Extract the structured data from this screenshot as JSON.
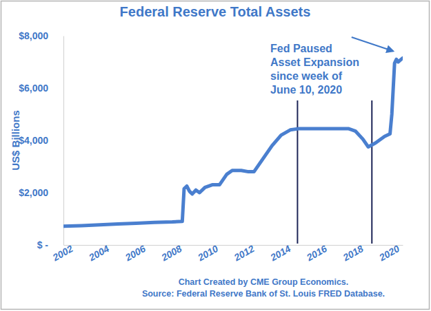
{
  "chart_data": {
    "type": "line",
    "title": "Federal Reserve Total Assets",
    "y_label": "US$ Billions",
    "x": [
      2002,
      2003,
      2004,
      2005,
      2006,
      2007,
      2008,
      2008.55,
      2008.65,
      2008.8,
      2008.95,
      2009.1,
      2009.3,
      2009.5,
      2009.8,
      2010.2,
      2010.6,
      2011.0,
      2011.3,
      2011.8,
      2012.2,
      2012.5,
      2013.0,
      2013.5,
      2014.0,
      2014.5,
      2015.0,
      2016.0,
      2017.0,
      2017.7,
      2018.1,
      2018.5,
      2018.8,
      2019.2,
      2019.7,
      2020.0,
      2020.1,
      2020.25,
      2020.35,
      2020.45,
      2020.7
    ],
    "values": [
      720,
      740,
      770,
      800,
      830,
      860,
      880,
      900,
      2150,
      2250,
      2050,
      1950,
      2100,
      2000,
      2200,
      2300,
      2300,
      2700,
      2850,
      2850,
      2800,
      2800,
      3300,
      3800,
      4200,
      4400,
      4450,
      4450,
      4450,
      4450,
      4350,
      4050,
      3750,
      3900,
      4150,
      4250,
      5000,
      6950,
      7100,
      7000,
      7150
    ],
    "color": "#4a7fcf",
    "xlim": [
      2002,
      2020.7
    ],
    "xticks": [
      2002,
      2004,
      2006,
      2008,
      2010,
      2012,
      2014,
      2016,
      2018,
      2020
    ],
    "ylim": [
      0,
      8000
    ],
    "yticks": [
      {
        "value": 0,
        "label": "$ -"
      },
      {
        "value": 2000,
        "label": "$2,000"
      },
      {
        "value": 4000,
        "label": "$4,000"
      },
      {
        "value": 6000,
        "label": "$6,000"
      },
      {
        "value": 8000,
        "label": "$8,000"
      }
    ],
    "grid": false,
    "annotation": [
      "Fed Paused",
      "Asset Expansion",
      "since week of",
      "June 10, 2020"
    ],
    "vlines": [
      2014.9,
      2019.0
    ],
    "notes": [
      "Chart Created by CME Group Economics.",
      "Source: Federal Reserve Bank of St. Louis FRED Database."
    ]
  }
}
